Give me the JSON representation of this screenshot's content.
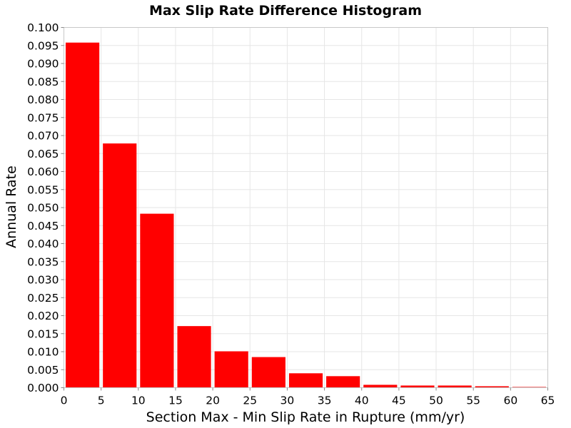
{
  "chart_data": {
    "type": "bar",
    "title": "Max Slip Rate Difference Histogram",
    "xlabel": "Section Max - Min Slip Rate in Rupture (mm/yr)",
    "ylabel": "Annual Rate",
    "xlim": [
      0,
      65
    ],
    "ylim": [
      0,
      0.1
    ],
    "bin_width": 5,
    "bins": [
      {
        "x0": 0,
        "x1": 5,
        "value": 0.0958
      },
      {
        "x0": 5,
        "x1": 10,
        "value": 0.0678
      },
      {
        "x0": 10,
        "x1": 15,
        "value": 0.0483
      },
      {
        "x0": 15,
        "x1": 20,
        "value": 0.0171
      },
      {
        "x0": 20,
        "x1": 25,
        "value": 0.0101
      },
      {
        "x0": 25,
        "x1": 30,
        "value": 0.0085
      },
      {
        "x0": 30,
        "x1": 35,
        "value": 0.004
      },
      {
        "x0": 35,
        "x1": 40,
        "value": 0.0032
      },
      {
        "x0": 40,
        "x1": 45,
        "value": 0.0008
      },
      {
        "x0": 45,
        "x1": 50,
        "value": 0.0006
      },
      {
        "x0": 50,
        "x1": 55,
        "value": 0.0006
      },
      {
        "x0": 55,
        "x1": 60,
        "value": 0.0004
      },
      {
        "x0": 60,
        "x1": 65,
        "value": 0.0002
      }
    ],
    "x_ticks": [
      "0",
      "5",
      "10",
      "15",
      "20",
      "25",
      "30",
      "35",
      "40",
      "45",
      "50",
      "55",
      "60",
      "65"
    ],
    "y_ticks": [
      "0.000",
      "0.005",
      "0.010",
      "0.015",
      "0.020",
      "0.025",
      "0.030",
      "0.035",
      "0.040",
      "0.045",
      "0.050",
      "0.055",
      "0.060",
      "0.065",
      "0.070",
      "0.075",
      "0.080",
      "0.085",
      "0.090",
      "0.095",
      "0.100"
    ],
    "bar_color": "#ff0000",
    "grid": true,
    "grid_color": "#e6e6e6",
    "legend": "none"
  }
}
